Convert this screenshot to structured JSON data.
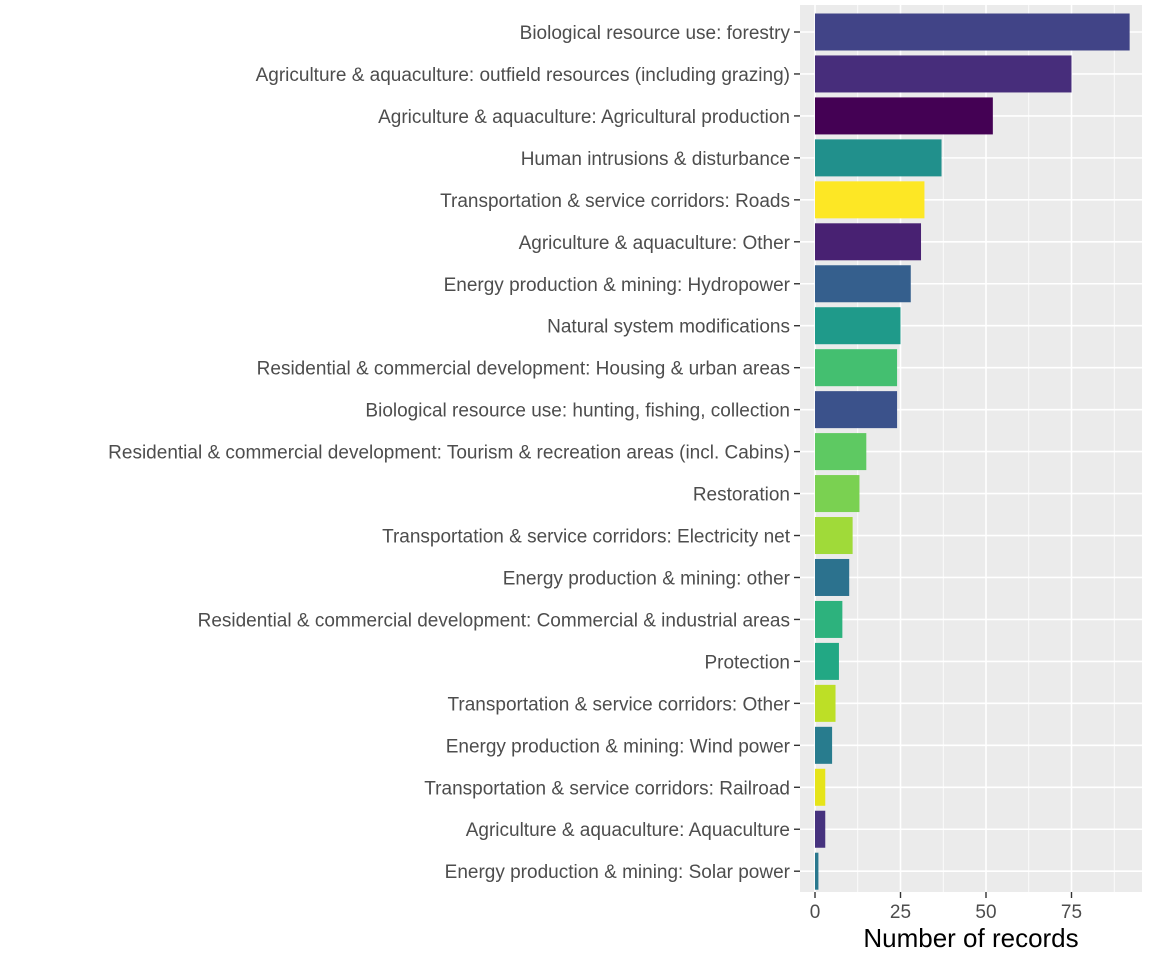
{
  "chart_data": {
    "type": "bar",
    "orientation": "horizontal",
    "title": "",
    "xlabel": "Number of records",
    "ylabel": "",
    "xlim": [
      0,
      96
    ],
    "xticks": [
      0,
      25,
      50,
      75
    ],
    "grid": true,
    "legend": "none",
    "panel_color": "#ebebeb",
    "grid_color": "#ffffff",
    "bars": [
      {
        "category": "Biological resource use: forestry",
        "value": 92,
        "color": "#414487"
      },
      {
        "category": "Agriculture & aquaculture: outfield resources (including grazing)",
        "value": 75,
        "color": "#472d7b"
      },
      {
        "category": "Agriculture & aquaculture: Agricultural production",
        "value": 52,
        "color": "#440154"
      },
      {
        "category": "Human intrusions & disturbance",
        "value": 37,
        "color": "#21908c"
      },
      {
        "category": "Transportation & service corridors: Roads",
        "value": 32,
        "color": "#fde725"
      },
      {
        "category": "Agriculture & aquaculture: Other",
        "value": 31,
        "color": "#482172"
      },
      {
        "category": "Energy production & mining: Hydropower",
        "value": 28,
        "color": "#355f8d"
      },
      {
        "category": "Natural system modifications",
        "value": 25,
        "color": "#1f9a8a"
      },
      {
        "category": "Residential & commercial development: Housing & urban areas",
        "value": 24,
        "color": "#44bf70"
      },
      {
        "category": "Biological resource use: hunting, fishing, collection",
        "value": 24,
        "color": "#3b528b"
      },
      {
        "category": "Residential & commercial development: Tourism & recreation areas (incl. Cabins)",
        "value": 15,
        "color": "#5ec962"
      },
      {
        "category": "Restoration",
        "value": 13,
        "color": "#7ad151"
      },
      {
        "category": "Transportation & service corridors: Electricity net",
        "value": 11,
        "color": "#a0da39"
      },
      {
        "category": "Energy production & mining: other",
        "value": 10,
        "color": "#2c728e"
      },
      {
        "category": "Residential & commercial development: Commercial & industrial areas",
        "value": 8,
        "color": "#2db27d"
      },
      {
        "category": "Protection",
        "value": 7,
        "color": "#22a884"
      },
      {
        "category": "Transportation & service corridors: Other",
        "value": 6,
        "color": "#bddf26"
      },
      {
        "category": "Energy production & mining: Wind power",
        "value": 5,
        "color": "#287c8e"
      },
      {
        "category": "Transportation & service corridors: Railroad",
        "value": 3,
        "color": "#e6e419"
      },
      {
        "category": "Agriculture & aquaculture: Aquaculture",
        "value": 3,
        "color": "#46327e"
      },
      {
        "category": "Energy production & mining: Solar power",
        "value": 1,
        "color": "#2a788e"
      }
    ]
  }
}
